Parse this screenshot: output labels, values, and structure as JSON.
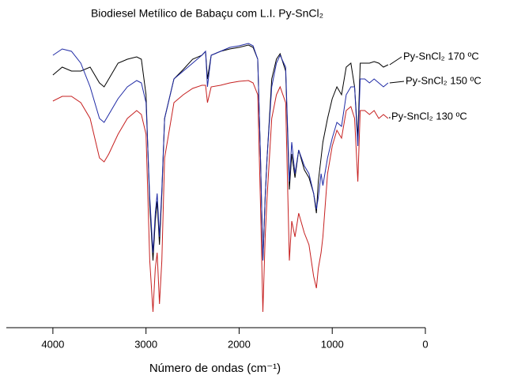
{
  "chart_data": {
    "type": "line",
    "title": "Biodiesel Metílico de Babaçu com L.I. Py-SnCl₂",
    "x_label": "Número de ondas (cm⁻¹)",
    "xlim": [
      4500,
      0
    ],
    "xticks": [
      4000,
      3000,
      2000,
      1000,
      0
    ],
    "ylim": [
      0,
      375
    ],
    "x": [
      4000,
      3900,
      3800,
      3700,
      3600,
      3500,
      3450,
      3400,
      3300,
      3200,
      3100,
      3050,
      3000,
      2960,
      2925,
      2900,
      2880,
      2855,
      2830,
      2800,
      2700,
      2600,
      2500,
      2400,
      2360,
      2340,
      2300,
      2200,
      2100,
      2000,
      1900,
      1850,
      1800,
      1770,
      1745,
      1720,
      1700,
      1650,
      1600,
      1560,
      1500,
      1460,
      1435,
      1400,
      1360,
      1300,
      1250,
      1200,
      1170,
      1150,
      1120,
      1100,
      1050,
      1000,
      950,
      900,
      850,
      800,
      760,
      725,
      700,
      650,
      600,
      550,
      500,
      450,
      400
    ],
    "series": [
      {
        "name": "Py-SnCl₂ 170 ºC",
        "color": "#000000",
        "values": [
          320,
          330,
          325,
          325,
          330,
          310,
          305,
          315,
          335,
          340,
          343,
          340,
          295,
          155,
          85,
          135,
          160,
          105,
          170,
          265,
          315,
          327,
          340,
          345,
          350,
          315,
          345,
          350,
          353,
          355,
          358,
          355,
          340,
          215,
          85,
          165,
          215,
          315,
          340,
          347,
          325,
          175,
          220,
          190,
          225,
          200,
          190,
          170,
          145,
          185,
          215,
          235,
          265,
          290,
          305,
          295,
          330,
          335,
          305,
          240,
          335,
          335,
          335,
          337,
          335,
          330,
          333
        ]
      },
      {
        "name": "Py-SnCl₂ 150 ºC",
        "color": "#1f2aa5",
        "values": [
          345,
          353,
          350,
          335,
          305,
          265,
          260,
          270,
          290,
          305,
          313,
          310,
          285,
          165,
          95,
          145,
          170,
          115,
          175,
          265,
          315,
          325,
          335,
          345,
          350,
          305,
          345,
          350,
          355,
          357,
          360,
          357,
          340,
          215,
          85,
          165,
          215,
          305,
          335,
          345,
          330,
          185,
          235,
          195,
          225,
          205,
          195,
          170,
          150,
          165,
          195,
          180,
          215,
          240,
          260,
          255,
          295,
          305,
          305,
          230,
          315,
          315,
          310,
          315,
          310,
          305,
          310
        ]
      },
      {
        "name": "Py-SnCl₂ 130 ºC",
        "color": "#c62020",
        "values": [
          287,
          293,
          293,
          285,
          265,
          215,
          210,
          220,
          245,
          265,
          275,
          270,
          245,
          85,
          20,
          75,
          95,
          30,
          85,
          215,
          285,
          295,
          303,
          307,
          307,
          285,
          305,
          307,
          310,
          312,
          313,
          310,
          295,
          155,
          20,
          115,
          165,
          265,
          295,
          305,
          285,
          85,
          135,
          115,
          145,
          120,
          105,
          65,
          50,
          75,
          95,
          115,
          195,
          230,
          250,
          240,
          275,
          280,
          265,
          185,
          275,
          275,
          270,
          275,
          265,
          270,
          265
        ]
      }
    ]
  }
}
